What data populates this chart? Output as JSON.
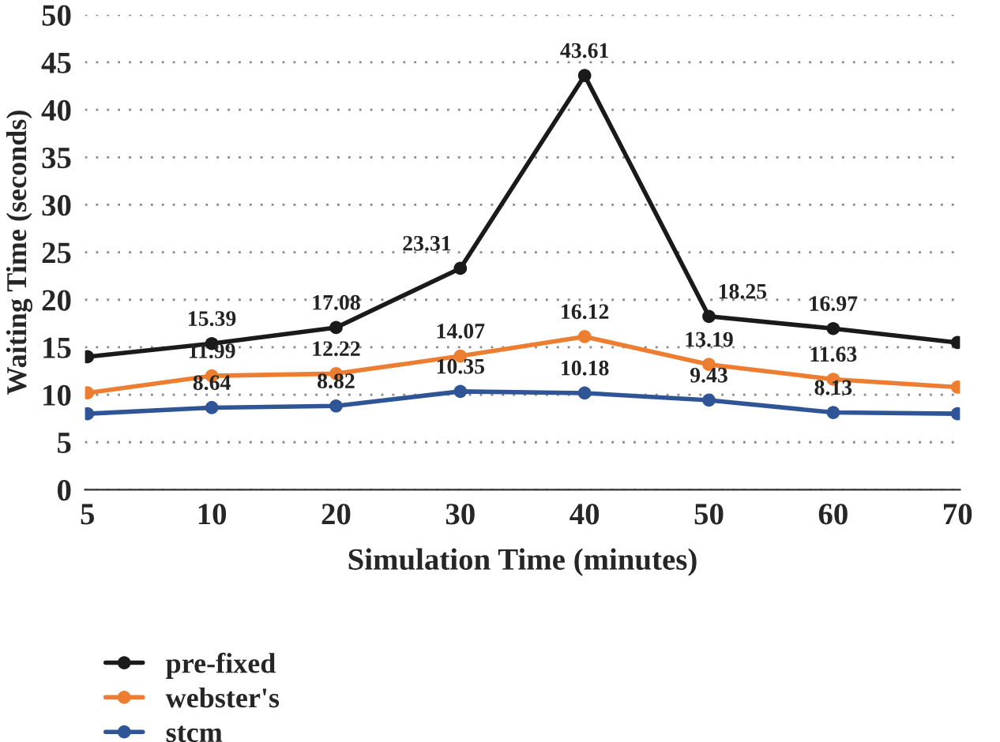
{
  "chart_data": {
    "type": "line",
    "xlabel": "Simulation Time (minutes)",
    "ylabel": "Waiting Time (seconds)",
    "categories": [
      "5",
      "10",
      "20",
      "30",
      "40",
      "50",
      "60",
      "70"
    ],
    "series": [
      {
        "name": "pre-fixed",
        "color": "#1a1a1a",
        "values": [
          14.0,
          15.39,
          17.08,
          23.31,
          43.61,
          18.25,
          16.97,
          15.5
        ],
        "value_labels": [
          null,
          "15.39",
          "17.08",
          "23.31",
          "43.61",
          "18.25",
          "16.97",
          null
        ]
      },
      {
        "name": "webster's",
        "color": "#ed7d31",
        "values": [
          10.2,
          11.99,
          12.22,
          14.07,
          16.12,
          13.19,
          11.63,
          10.8
        ],
        "value_labels": [
          null,
          "11.99",
          "12.22",
          "14.07",
          "16.12",
          "13.19",
          "11.63",
          null
        ]
      },
      {
        "name": "stcm",
        "color": "#2f5597",
        "values": [
          8.0,
          8.64,
          8.82,
          10.35,
          10.18,
          9.43,
          8.13,
          8.0
        ],
        "value_labels": [
          null,
          "8.64",
          "8.82",
          "10.35",
          "10.18",
          "9.43",
          "8.13",
          null
        ]
      }
    ],
    "ylim": [
      0,
      50
    ],
    "yticks": [
      0,
      5,
      10,
      15,
      20,
      25,
      30,
      35,
      40,
      45,
      50
    ],
    "grid": "y",
    "legend": "bottom",
    "marker": "circle",
    "line_style": "solid"
  }
}
